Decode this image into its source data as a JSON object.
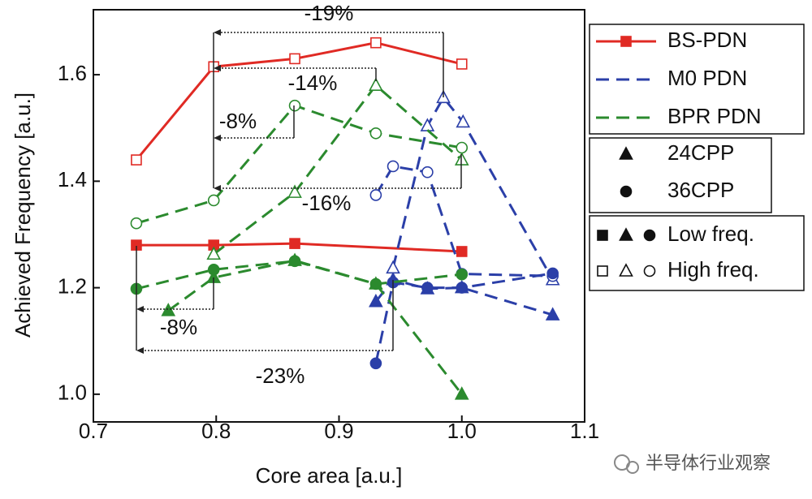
{
  "chart_data": {
    "type": "line",
    "x_label": "Core area [a.u.]",
    "y_label": "Achieved Frequency [a.u.]",
    "xlim": [
      0.7,
      1.1
    ],
    "ylim": [
      0.948,
      1.722
    ],
    "xticks": [
      0.7,
      0.8,
      0.9,
      {
        "value": 1.0,
        "label": "1.0"
      },
      1.1
    ],
    "yticks": [
      {
        "value": 1.0,
        "label": "1.0"
      },
      1.2,
      1.4,
      1.6
    ],
    "series": [
      {
        "name": "BS-PDN",
        "color": "#e02a24",
        "dashed": false,
        "traces": [
          {
            "marker": "square",
            "filled": false,
            "x": [
              0.735,
              0.798,
              0.864,
              0.93,
              1.0
            ],
            "values": [
              1.44,
              1.615,
              1.63,
              1.66,
              1.62
            ]
          },
          {
            "marker": "square",
            "filled": true,
            "x": [
              0.735,
              0.798,
              0.864,
              1.0
            ],
            "values": [
              1.28,
              1.28,
              1.283,
              1.268
            ]
          }
        ]
      },
      {
        "name": "M0 PDN",
        "color": "#2b3fa8",
        "dashed": true,
        "traces": [
          {
            "marker": "triangle",
            "filled": false,
            "x": [
              0.944,
              0.972,
              0.985,
              1.001,
              1.074
            ],
            "values": [
              1.237,
              1.504,
              1.557,
              1.511,
              1.215
            ]
          },
          {
            "marker": "circle",
            "filled": false,
            "x": [
              0.93,
              0.944,
              0.972,
              1.0,
              1.074
            ],
            "values": [
              1.374,
              1.428,
              1.417,
              1.226,
              1.222
            ]
          },
          {
            "marker": "triangle",
            "filled": true,
            "x": [
              0.93,
              0.944,
              0.972,
              1.0,
              1.074
            ],
            "values": [
              1.174,
              1.215,
              1.198,
              1.2,
              1.149
            ]
          },
          {
            "marker": "circle",
            "filled": true,
            "x": [
              0.93,
              0.944,
              0.972,
              1.0,
              1.074
            ],
            "values": [
              1.058,
              1.21,
              1.2,
              1.2,
              1.227
            ]
          }
        ]
      },
      {
        "name": "BPR PDN",
        "color": "#2b8a2e",
        "dashed": true,
        "traces": [
          {
            "marker": "triangle",
            "filled": false,
            "x": [
              0.798,
              0.864,
              0.93,
              1.0
            ],
            "values": [
              1.263,
              1.379,
              1.58,
              1.44
            ]
          },
          {
            "marker": "circle",
            "filled": false,
            "x": [
              0.735,
              0.798,
              0.864,
              0.93,
              1.0
            ],
            "values": [
              1.321,
              1.364,
              1.542,
              1.49,
              1.463
            ]
          },
          {
            "marker": "triangle",
            "filled": true,
            "x": [
              0.761,
              0.798,
              0.864,
              0.93,
              1.0
            ],
            "values": [
              1.157,
              1.219,
              1.251,
              1.207,
              1.0
            ]
          },
          {
            "marker": "circle",
            "filled": true,
            "x": [
              0.735,
              0.798,
              0.864,
              0.93,
              1.0
            ],
            "values": [
              1.198,
              1.234,
              1.25,
              1.207,
              1.225
            ]
          }
        ]
      }
    ],
    "marker_legend": [
      {
        "label": "24CPP",
        "marker": "triangle"
      },
      {
        "label": "36CPP",
        "marker": "circle"
      }
    ],
    "fill_legend": [
      {
        "label": "Low freq.",
        "filled": true
      },
      {
        "label": "High freq.",
        "filled": false
      }
    ],
    "annotations": [
      "-19%",
      "-14%",
      "-8%",
      "-16%",
      "-8%",
      "-23%"
    ],
    "watermark": "半导体行业观察"
  }
}
